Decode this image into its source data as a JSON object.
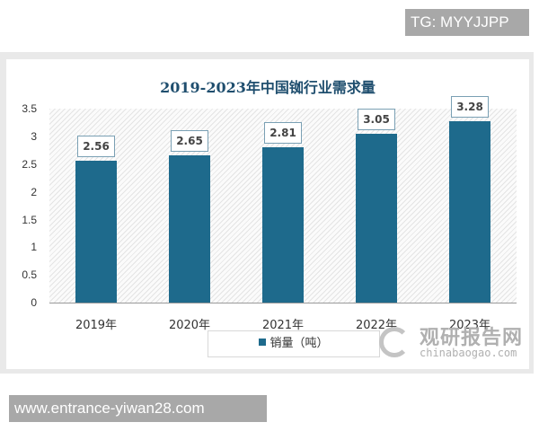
{
  "overlays": {
    "top_right_tag": "TG: MYYJJPP",
    "bottom_left_url": "www.entrance-yiwan28.com"
  },
  "watermark": {
    "cn": "观研报告网",
    "en": "chinabaogao.com"
  },
  "chart_data": {
    "type": "bar",
    "title": "2019-2023年中国铷行业需求量",
    "categories": [
      "2019年",
      "2020年",
      "2021年",
      "2022年",
      "2023年"
    ],
    "series": [
      {
        "name": "销量（吨）",
        "values": [
          2.56,
          2.65,
          2.81,
          3.05,
          3.28
        ],
        "color": "#1e6a8c"
      }
    ],
    "data_labels": [
      "2.56",
      "2.65",
      "2.81",
      "3.05",
      "3.28"
    ],
    "yticks": [
      "3.5",
      "3",
      "2.5",
      "2",
      "1.5",
      "1",
      "0.5",
      "0"
    ],
    "ylim": [
      0,
      3.5
    ],
    "xlabel": "",
    "ylabel": "",
    "grid": false,
    "legend_position": "bottom",
    "legend_label": "销量（吨）"
  }
}
